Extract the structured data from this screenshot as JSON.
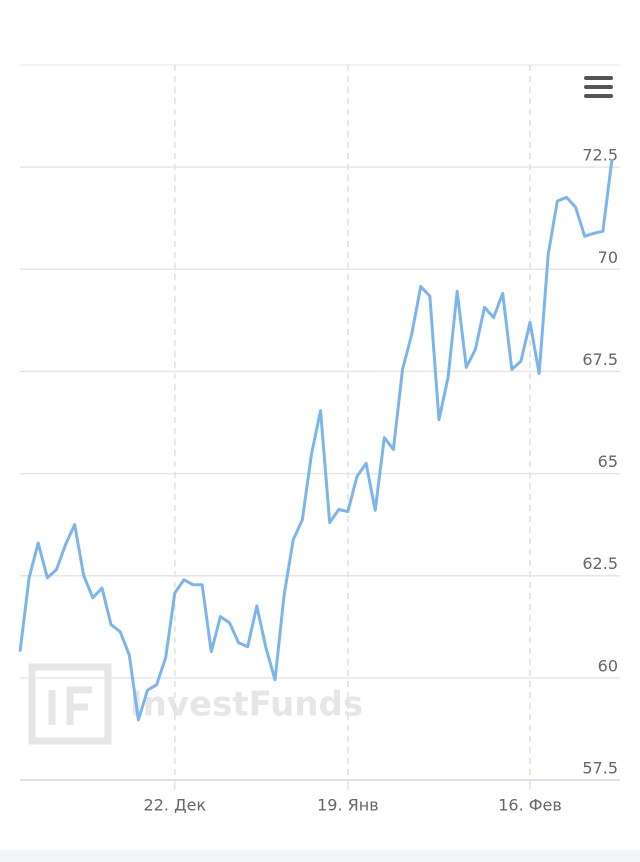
{
  "chart_data": {
    "type": "line",
    "watermark": "InvestFunds",
    "categories": [
      null,
      null,
      null,
      null,
      null,
      null,
      null,
      null,
      null,
      null,
      null,
      null,
      null,
      null,
      null,
      null,
      null,
      "22. Дек",
      null,
      null,
      null,
      null,
      null,
      null,
      null,
      null,
      null,
      null,
      null,
      null,
      null,
      null,
      null,
      null,
      null,
      null,
      "19. Янв",
      null,
      null,
      null,
      null,
      null,
      null,
      null,
      null,
      null,
      null,
      null,
      null,
      null,
      null,
      null,
      null,
      null,
      null,
      null,
      "16. Фев",
      null,
      null,
      null,
      null,
      null,
      null,
      null,
      null,
      null
    ],
    "series": [
      {
        "color": "#7cb5ec",
        "values": [
          60.64,
          62.45,
          63.3,
          62.45,
          62.65,
          63.26,
          63.75,
          62.5,
          61.96,
          62.2,
          61.3,
          61.13,
          60.56,
          58.97,
          59.7,
          59.83,
          60.5,
          62.08,
          62.4,
          62.28,
          62.28,
          60.64,
          61.5,
          61.35,
          60.86,
          60.76,
          61.76,
          60.74,
          59.95,
          62.03,
          63.38,
          63.87,
          65.47,
          66.54,
          63.8,
          64.12,
          64.07,
          64.93,
          65.25,
          64.1,
          65.88,
          65.59,
          67.55,
          68.4,
          69.58,
          69.34,
          66.32,
          67.35,
          69.46,
          67.6,
          68.04,
          69.07,
          68.82,
          69.41,
          67.55,
          67.75,
          68.7,
          67.45,
          70.37,
          71.67,
          71.76,
          71.52,
          70.81,
          70.88,
          70.93,
          72.7
        ]
      }
    ],
    "ylim": [
      57.5,
      75
    ],
    "yticks": [
      57.5,
      60,
      62.5,
      65,
      67.5,
      70,
      72.5
    ],
    "grid": true
  }
}
